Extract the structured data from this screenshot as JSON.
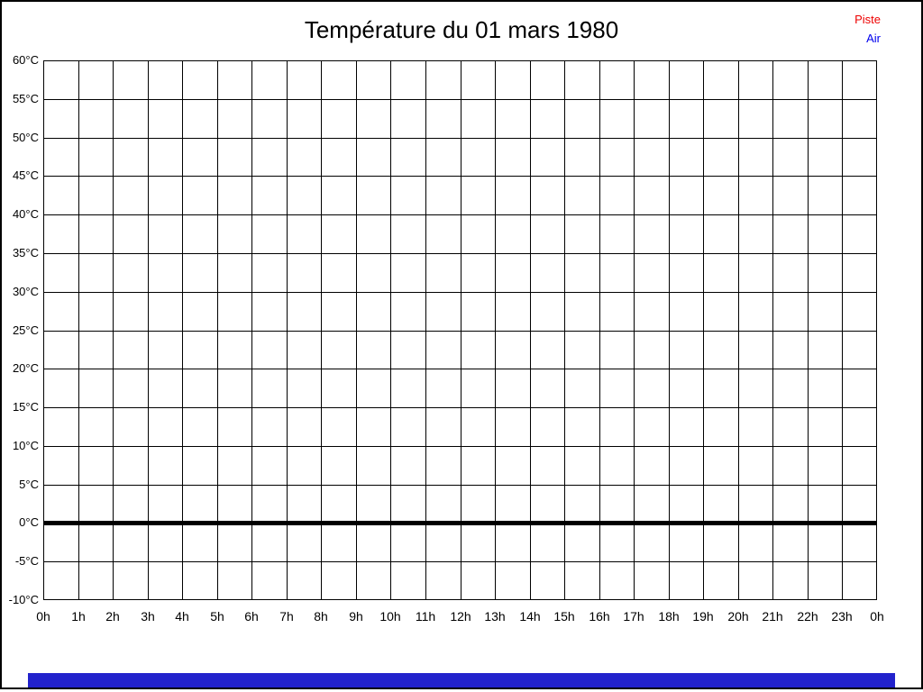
{
  "window": {
    "background": "#FFFFFF",
    "border_color": "#000000"
  },
  "title": "Température du 01 mars 1980",
  "legend": {
    "position": "top-right",
    "items": [
      {
        "label": "Piste",
        "color": "#EE0000"
      },
      {
        "label": "Air",
        "color": "#0000EE"
      }
    ]
  },
  "progress_bar": {
    "color": "#2222CC"
  },
  "chart_data": {
    "type": "line",
    "title": "Température du 01 mars 1980",
    "xlabel": "",
    "ylabel": "",
    "ylim": [
      -10,
      60
    ],
    "y_step": 5,
    "grid": true,
    "grid_color": "#000000",
    "legend_position": "top-right",
    "x_tick_labels": [
      "0h",
      "1h",
      "2h",
      "3h",
      "4h",
      "5h",
      "6h",
      "7h",
      "8h",
      "9h",
      "10h",
      "11h",
      "12h",
      "13h",
      "14h",
      "15h",
      "16h",
      "17h",
      "18h",
      "19h",
      "20h",
      "21h",
      "22h",
      "23h",
      "0h"
    ],
    "y_tick_labels": [
      "60°C",
      "55°C",
      "50°C",
      "45°C",
      "40°C",
      "35°C",
      "30°C",
      "25°C",
      "20°C",
      "15°C",
      "10°C",
      "5°C",
      "0°C",
      "-5°C",
      "-10°C"
    ],
    "zero_line_value": 0,
    "series": [
      {
        "name": "Piste",
        "color": "#EE0000",
        "values": []
      },
      {
        "name": "Air",
        "color": "#0000EE",
        "values": []
      }
    ]
  }
}
